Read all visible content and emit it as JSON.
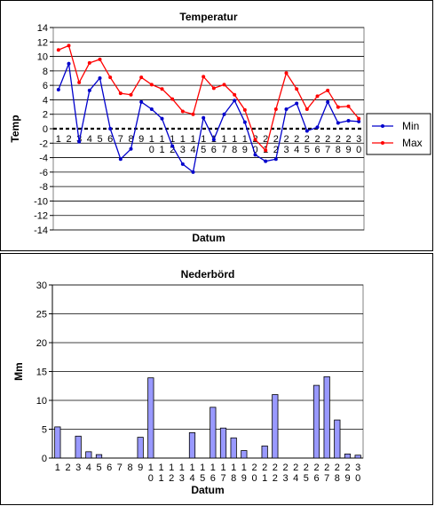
{
  "chart_data": [
    {
      "type": "line",
      "title": "Temperatur",
      "xlabel": "Datum",
      "ylabel": "Temp",
      "ylim": [
        -14,
        14
      ],
      "ytick_step": 2,
      "grid": true,
      "legend_position": "right",
      "x": [
        "1",
        "2",
        "3",
        "4",
        "5",
        "6",
        "7",
        "8",
        "9",
        "10",
        "11",
        "12",
        "13",
        "14",
        "15",
        "16",
        "17",
        "18",
        "19",
        "20",
        "21",
        "22",
        "23",
        "24",
        "25",
        "26",
        "27",
        "28",
        "29",
        "30"
      ],
      "series": [
        {
          "name": "Min",
          "color": "#0000cc",
          "values": [
            5.4,
            9.0,
            -1.8,
            5.3,
            7.0,
            0.0,
            -4.2,
            -2.8,
            3.7,
            2.7,
            1.4,
            -2.4,
            -4.9,
            -6.0,
            1.5,
            -1.5,
            2.0,
            3.9,
            0.9,
            -3.6,
            -4.5,
            -4.2,
            2.7,
            3.5,
            -0.3,
            0.2,
            3.7,
            0.8,
            1.1,
            1.0
          ]
        },
        {
          "name": "Max",
          "color": "#ff0000",
          "values": [
            10.9,
            11.5,
            6.4,
            9.1,
            9.6,
            7.1,
            4.9,
            4.7,
            7.1,
            6.1,
            5.5,
            4.1,
            2.4,
            2.0,
            7.2,
            5.6,
            6.1,
            4.7,
            2.6,
            -1.5,
            -3.0,
            2.7,
            7.7,
            5.5,
            2.7,
            4.5,
            5.3,
            3.0,
            3.1,
            1.4
          ]
        }
      ]
    },
    {
      "type": "bar",
      "title": "Nederbörd",
      "xlabel": "Datum",
      "ylabel": "Mm",
      "ylim": [
        0,
        30
      ],
      "ytick_step": 5,
      "grid": true,
      "bar_color": "#9999ff",
      "categories": [
        "1",
        "2",
        "3",
        "4",
        "5",
        "6",
        "7",
        "8",
        "9",
        "10",
        "11",
        "12",
        "13",
        "14",
        "15",
        "16",
        "17",
        "18",
        "19",
        "20",
        "21",
        "22",
        "23",
        "24",
        "25",
        "26",
        "27",
        "28",
        "29",
        "30"
      ],
      "values": [
        5.4,
        0,
        3.8,
        1.1,
        0.6,
        0,
        0,
        0,
        3.6,
        13.9,
        0,
        0,
        0,
        4.4,
        0,
        8.8,
        5.2,
        3.5,
        1.3,
        0,
        2.1,
        11.0,
        0,
        0,
        0,
        12.6,
        14.1,
        6.6,
        0.7,
        0.5
      ]
    }
  ]
}
